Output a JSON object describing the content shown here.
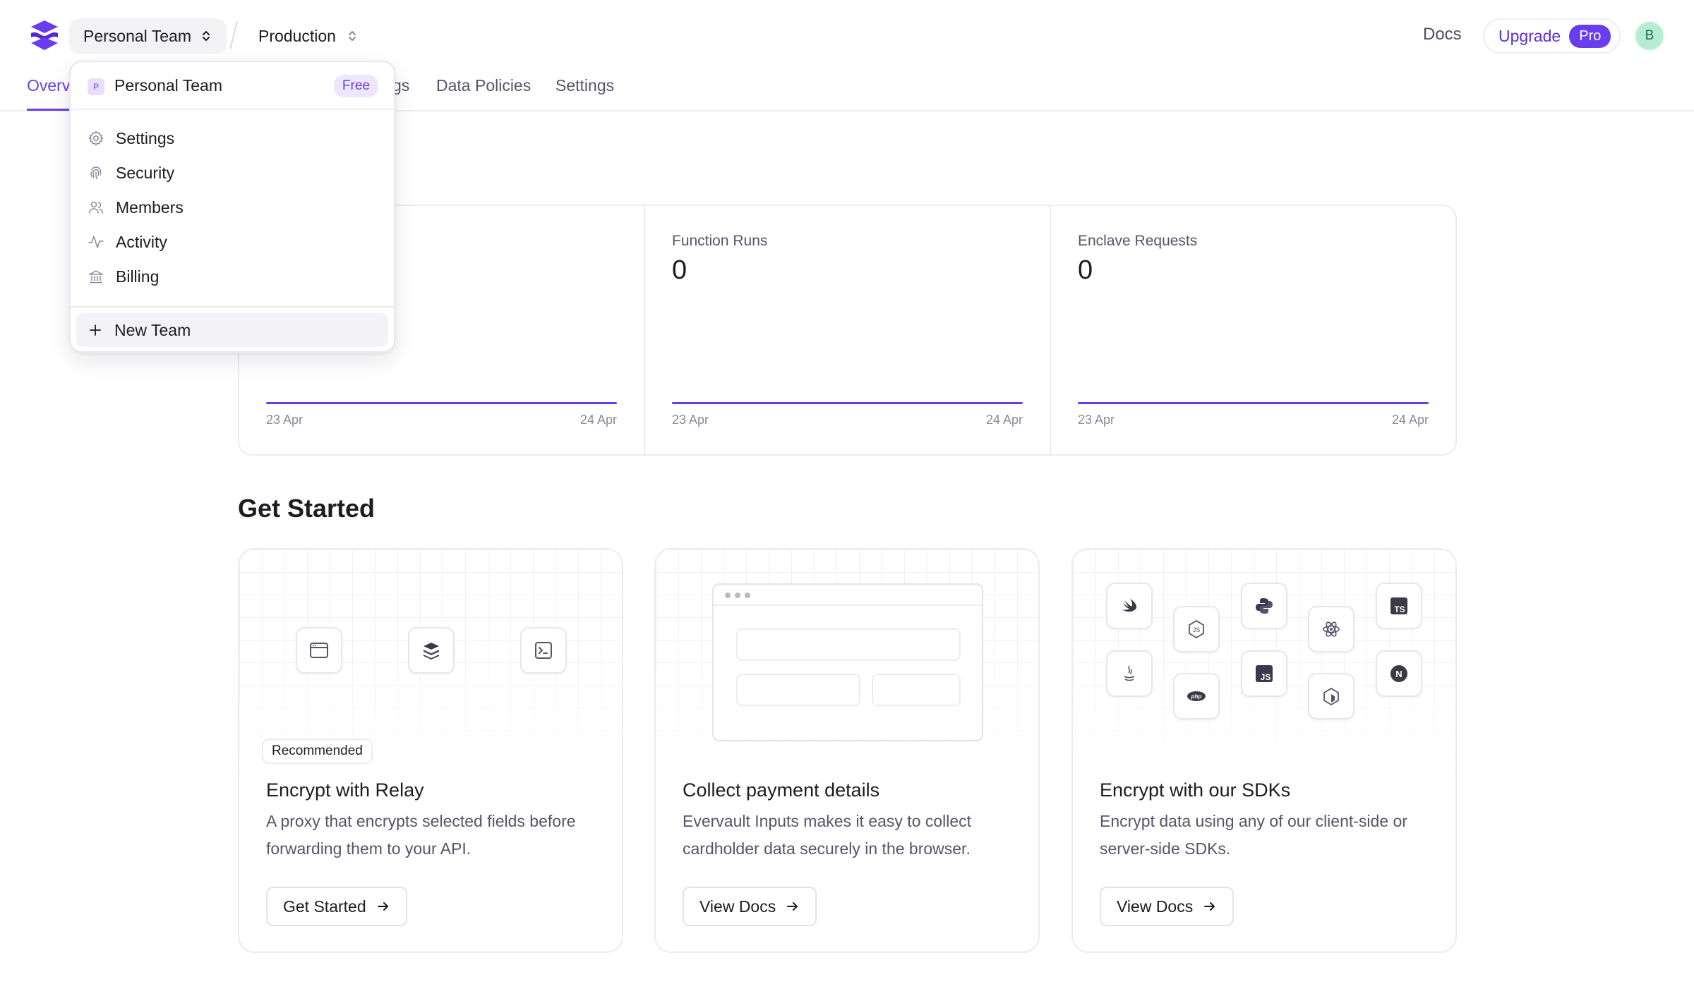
{
  "header": {
    "team_name": "Personal Team",
    "environment": "Production",
    "docs_label": "Docs",
    "upgrade_label": "Upgrade",
    "pro_badge": "Pro",
    "avatar_initial": "B"
  },
  "tabs": [
    {
      "label": "Overview",
      "active": true
    },
    {
      "label": "Logs",
      "visible_text": "gs"
    },
    {
      "label": "Data Policies"
    },
    {
      "label": "Settings"
    }
  ],
  "stats": [
    {
      "label": "",
      "value": "",
      "x_start": "23 Apr",
      "x_end": "24 Apr"
    },
    {
      "label": "Function Runs",
      "value": "0",
      "x_start": "23 Apr",
      "x_end": "24 Apr"
    },
    {
      "label": "Enclave Requests",
      "value": "0",
      "x_start": "23 Apr",
      "x_end": "24 Apr"
    }
  ],
  "get_started": {
    "title": "Get Started",
    "cards": [
      {
        "badge": "Recommended",
        "title": "Encrypt with Relay",
        "description": "A proxy that encrypts selected fields before forwarding them to your API.",
        "button": "Get Started",
        "icons": [
          "browser-icon",
          "evervault-stack-icon",
          "terminal-icon"
        ]
      },
      {
        "title": "Collect payment details",
        "description": "Evervault Inputs makes it easy to collect cardholder data securely in the browser.",
        "button": "View Docs"
      },
      {
        "title": "Encrypt with our SDKs",
        "description": "Encrypt data using any of our client-side or server-side SDKs.",
        "button": "View Docs",
        "icons": [
          "swift-icon",
          "nodejs-icon",
          "python-icon",
          "react-icon",
          "typescript-icon",
          "java-icon",
          "php-icon",
          "javascript-icon",
          "ruby-icon",
          "nextjs-icon"
        ],
        "icon_texts": {
          "ts": "TS",
          "js": "JS",
          "php": "php",
          "node": "JS",
          "next": "N"
        }
      }
    ]
  },
  "dropdown": {
    "team_name": "Personal Team",
    "team_initial": "P",
    "plan_badge": "Free",
    "items": [
      {
        "label": "Settings",
        "icon": "gear-icon"
      },
      {
        "label": "Security",
        "icon": "fingerprint-icon"
      },
      {
        "label": "Members",
        "icon": "users-icon"
      },
      {
        "label": "Activity",
        "icon": "activity-icon"
      },
      {
        "label": "Billing",
        "icon": "bank-icon"
      }
    ],
    "new_team_label": "New Team"
  },
  "colors": {
    "accent": "#6a3cf0",
    "border": "#ececf0",
    "text": "#1c1c22",
    "muted": "#55556a"
  }
}
